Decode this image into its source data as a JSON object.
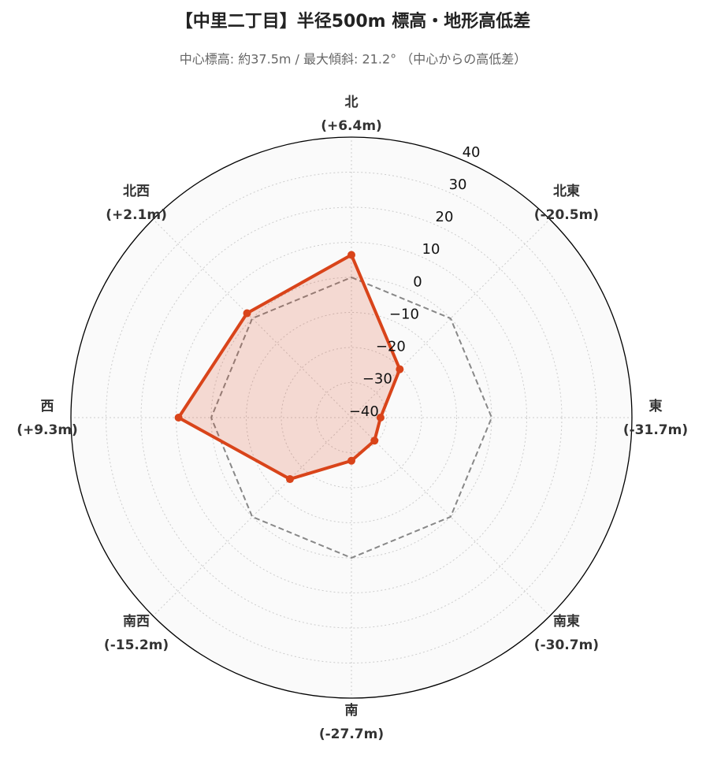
{
  "chart_data": {
    "type": "radar",
    "title": "【中里二丁目】半径500m 標高・地形高低差",
    "subtitle": "中心標高: 約37.5m / 最大傾斜: 21.2° （中心からの高低差）",
    "categories": [
      "北",
      "北東",
      "東",
      "南東",
      "南",
      "南西",
      "西",
      "北西"
    ],
    "values": [
      6.4,
      -20.5,
      -31.7,
      -30.7,
      -27.7,
      -15.2,
      9.3,
      2.1
    ],
    "value_labels": [
      "(+6.4m)",
      "(-20.5m)",
      "(-31.7m)",
      "(-30.7m)",
      "(-27.7m)",
      "(-15.2m)",
      "(+9.3m)",
      "(+2.1m)"
    ],
    "color": "#d9441a",
    "reference_line": {
      "value": 0,
      "color": "#888888"
    },
    "rlim": [
      -40,
      40
    ],
    "rticks": [
      {
        "value": -40,
        "label": "−40"
      },
      {
        "value": -30,
        "label": "−30"
      },
      {
        "value": -20,
        "label": "−20"
      },
      {
        "value": -10,
        "label": "−10"
      },
      0,
      10,
      20,
      30,
      40
    ],
    "grid": true
  }
}
